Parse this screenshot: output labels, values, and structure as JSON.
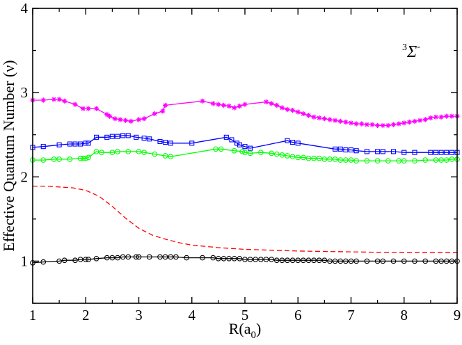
{
  "chart_data": {
    "type": "line",
    "title": "",
    "xlabel": "R(a",
    "xlabel_sub": "0",
    "xlabel_close": ")",
    "ylabel": "Effective Quantum Number (ν)",
    "xlim": [
      1,
      9
    ],
    "ylim": [
      0.5,
      4
    ],
    "x_ticks": [
      1,
      2,
      3,
      4,
      5,
      6,
      7,
      8,
      9
    ],
    "y_ticks": [
      1,
      2,
      3,
      4
    ],
    "annotation": {
      "pre": "3",
      "main": "Σ",
      "post": "-"
    },
    "series": [
      {
        "name": "magenta-stars",
        "color": "#ff00ff",
        "marker": "star",
        "line": "solid",
        "x": [
          1.0,
          1.2,
          1.4,
          1.5,
          1.6,
          1.8,
          1.95,
          2.05,
          2.2,
          2.4,
          2.45,
          2.55,
          2.65,
          2.75,
          2.85,
          3.0,
          3.1,
          3.3,
          3.45,
          3.5,
          4.2,
          4.4,
          4.5,
          4.6,
          4.7,
          4.8,
          4.9,
          5.0,
          5.4,
          5.5,
          5.6,
          5.7,
          5.8,
          5.9,
          6.0,
          6.1,
          6.2,
          6.3,
          6.4,
          6.5,
          6.6,
          6.7,
          6.8,
          6.9,
          7.0,
          7.1,
          7.2,
          7.3,
          7.4,
          7.5,
          7.6,
          7.7,
          7.8,
          7.9,
          8.0,
          8.1,
          8.2,
          8.3,
          8.4,
          8.5,
          8.6,
          8.7,
          8.8,
          8.9,
          9.0
        ],
        "y": [
          2.91,
          2.91,
          2.92,
          2.92,
          2.9,
          2.86,
          2.81,
          2.81,
          2.81,
          2.74,
          2.72,
          2.69,
          2.68,
          2.67,
          2.66,
          2.68,
          2.69,
          2.75,
          2.78,
          2.85,
          2.9,
          2.87,
          2.86,
          2.85,
          2.84,
          2.82,
          2.84,
          2.86,
          2.89,
          2.87,
          2.85,
          2.82,
          2.8,
          2.79,
          2.77,
          2.75,
          2.73,
          2.71,
          2.7,
          2.69,
          2.68,
          2.67,
          2.66,
          2.65,
          2.64,
          2.63,
          2.63,
          2.62,
          2.62,
          2.61,
          2.61,
          2.61,
          2.62,
          2.63,
          2.64,
          2.65,
          2.66,
          2.67,
          2.68,
          2.7,
          2.71,
          2.71,
          2.72,
          2.72,
          2.72
        ]
      },
      {
        "name": "blue-squares",
        "color": "#0000ff",
        "marker": "square",
        "line": "solid",
        "x": [
          1.0,
          1.2,
          1.5,
          1.7,
          1.8,
          1.9,
          2.0,
          2.05,
          2.2,
          2.4,
          2.5,
          2.6,
          2.7,
          2.8,
          2.95,
          3.1,
          3.2,
          3.4,
          3.5,
          3.6,
          4.0,
          4.65,
          4.75,
          4.85,
          4.9,
          5.0,
          5.1,
          5.8,
          5.9,
          6.0,
          6.7,
          6.8,
          6.9,
          7.0,
          7.1,
          7.3,
          7.5,
          7.6,
          7.8,
          8.0,
          8.2,
          8.5,
          8.6,
          8.7,
          8.8,
          8.9,
          9.0
        ],
        "y": [
          2.35,
          2.36,
          2.38,
          2.39,
          2.39,
          2.39,
          2.4,
          2.4,
          2.47,
          2.47,
          2.48,
          2.48,
          2.49,
          2.49,
          2.47,
          2.46,
          2.45,
          2.42,
          2.41,
          2.4,
          2.4,
          2.47,
          2.44,
          2.4,
          2.38,
          2.36,
          2.34,
          2.43,
          2.41,
          2.4,
          2.33,
          2.33,
          2.32,
          2.32,
          2.31,
          2.3,
          2.3,
          2.3,
          2.3,
          2.29,
          2.29,
          2.29,
          2.29,
          2.29,
          2.29,
          2.29,
          2.29
        ]
      },
      {
        "name": "green-circles",
        "color": "#00ff00",
        "marker": "circle",
        "line": "solid",
        "x": [
          1.0,
          1.2,
          1.4,
          1.5,
          1.7,
          1.9,
          1.95,
          2.0,
          2.05,
          2.2,
          2.3,
          2.5,
          2.6,
          2.8,
          3.0,
          3.1,
          3.3,
          3.5,
          3.6,
          4.45,
          4.55,
          4.8,
          4.95,
          5.0,
          5.1,
          5.3,
          5.5,
          5.6,
          5.7,
          5.8,
          5.9,
          6.0,
          6.1,
          6.2,
          6.3,
          6.4,
          6.5,
          6.6,
          6.7,
          6.8,
          6.9,
          7.0,
          7.1,
          7.3,
          7.5,
          7.7,
          7.9,
          8.0,
          8.2,
          8.4,
          8.6,
          8.7,
          8.8,
          8.9,
          9.0
        ],
        "y": [
          2.2,
          2.2,
          2.21,
          2.21,
          2.21,
          2.22,
          2.22,
          2.22,
          2.23,
          2.3,
          2.29,
          2.29,
          2.3,
          2.3,
          2.3,
          2.29,
          2.27,
          2.25,
          2.24,
          2.33,
          2.33,
          2.31,
          2.3,
          2.29,
          2.28,
          2.29,
          2.28,
          2.27,
          2.26,
          2.25,
          2.24,
          2.23,
          2.23,
          2.22,
          2.22,
          2.22,
          2.21,
          2.21,
          2.21,
          2.2,
          2.2,
          2.2,
          2.19,
          2.19,
          2.19,
          2.19,
          2.19,
          2.19,
          2.19,
          2.2,
          2.2,
          2.2,
          2.2,
          2.21,
          2.21
        ]
      },
      {
        "name": "red-dashed",
        "color": "#ff0000",
        "marker": "none",
        "line": "dashed",
        "x": [
          1.0,
          1.25,
          1.5,
          1.75,
          2.0,
          2.25,
          2.5,
          2.75,
          3.0,
          3.25,
          3.5,
          3.75,
          4.0,
          4.5,
          5.0,
          5.5,
          6.0,
          6.5,
          7.0,
          7.5,
          8.0,
          8.5,
          9.0
        ],
        "y": [
          1.89,
          1.89,
          1.88,
          1.87,
          1.84,
          1.77,
          1.65,
          1.51,
          1.39,
          1.31,
          1.26,
          1.22,
          1.19,
          1.16,
          1.14,
          1.13,
          1.12,
          1.115,
          1.11,
          1.105,
          1.1,
          1.1,
          1.1
        ]
      },
      {
        "name": "black-circles",
        "color": "#000000",
        "marker": "circle",
        "line": "solid",
        "x": [
          1.0,
          1.2,
          1.5,
          1.6,
          1.8,
          1.9,
          2.0,
          2.05,
          2.2,
          2.4,
          2.5,
          2.6,
          2.7,
          2.8,
          2.95,
          3.0,
          3.2,
          3.4,
          3.5,
          3.6,
          3.7,
          3.9,
          4.2,
          4.4,
          4.5,
          4.6,
          4.7,
          4.8,
          4.9,
          5.0,
          5.1,
          5.2,
          5.3,
          5.4,
          5.5,
          5.6,
          5.7,
          5.8,
          5.9,
          6.0,
          6.1,
          6.2,
          6.3,
          6.4,
          6.5,
          6.6,
          6.7,
          6.8,
          6.9,
          7.0,
          7.1,
          7.3,
          7.5,
          7.6,
          7.8,
          8.0,
          8.2,
          8.4,
          8.6,
          8.7,
          8.8,
          8.9,
          9.0
        ],
        "y": [
          0.98,
          0.99,
          1.0,
          1.01,
          1.01,
          1.02,
          1.02,
          1.02,
          1.03,
          1.04,
          1.04,
          1.04,
          1.05,
          1.05,
          1.05,
          1.05,
          1.05,
          1.05,
          1.05,
          1.05,
          1.05,
          1.04,
          1.04,
          1.04,
          1.03,
          1.03,
          1.03,
          1.03,
          1.03,
          1.02,
          1.02,
          1.02,
          1.02,
          1.02,
          1.02,
          1.01,
          1.01,
          1.01,
          1.01,
          1.01,
          1.01,
          1.01,
          1.01,
          1.01,
          1.01,
          1.0,
          1.0,
          1.0,
          1.0,
          1.0,
          1.0,
          1.0,
          1.0,
          1.0,
          1.0,
          1.0,
          1.0,
          1.0,
          1.0,
          1.0,
          1.0,
          1.0,
          1.0
        ]
      }
    ]
  }
}
